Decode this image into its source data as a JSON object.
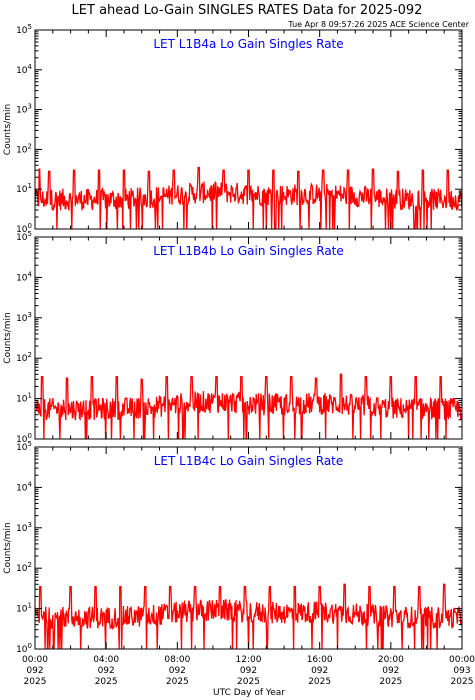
{
  "title": "LET ahead Lo-Gain SINGLES RATES Data for 2025-092",
  "timestamp": "Tue Apr  8 09:57:26 2025 ACE Science Center",
  "xlabel": "UTC Day of Year",
  "line_color": "#ff0000",
  "panel_title_color": "#0000ff",
  "chart_data": [
    {
      "type": "line",
      "title": "LET L1B4a Lo Gain Singles Rate",
      "ylabel": "Counts/min",
      "yscale": "log",
      "ylim": [
        1,
        100000
      ],
      "ytick_labels": [
        [
          "10",
          "0"
        ],
        [
          "10",
          "1"
        ],
        [
          "10",
          "2"
        ],
        [
          "10",
          "3"
        ],
        [
          "10",
          "4"
        ],
        [
          "10",
          "5"
        ]
      ],
      "xlim": [
        0,
        24
      ],
      "x_unit": "hours UTC",
      "baseline": 5.5,
      "spike_hours": [
        0.25,
        0.8,
        2.2,
        3.6,
        5.0,
        6.4,
        7.8,
        9.2,
        10.6,
        12.0,
        13.4,
        14.8,
        16.2,
        17.6,
        19.0,
        20.4,
        21.8,
        23.2
      ],
      "spike_values": [
        32,
        28,
        30,
        30,
        30,
        28,
        30,
        35,
        30,
        30,
        30,
        28,
        30,
        30,
        32,
        28,
        30,
        30
      ]
    },
    {
      "type": "line",
      "title": "LET L1B4b Lo Gain Singles Rate",
      "ylabel": "Counts/min",
      "yscale": "log",
      "ylim": [
        1,
        100000
      ],
      "ytick_labels": [
        [
          "10",
          "0"
        ],
        [
          "10",
          "1"
        ],
        [
          "10",
          "2"
        ],
        [
          "10",
          "3"
        ],
        [
          "10",
          "4"
        ],
        [
          "10",
          "5"
        ]
      ],
      "xlim": [
        0,
        24
      ],
      "x_unit": "hours UTC",
      "baseline": 5.5,
      "spike_hours": [
        0.4,
        1.8,
        3.2,
        4.6,
        6.0,
        7.4,
        8.8,
        10.2,
        11.6,
        13.0,
        14.4,
        15.8,
        17.2,
        18.6,
        20.0,
        21.4,
        22.8
      ],
      "spike_values": [
        35,
        32,
        35,
        35,
        30,
        35,
        35,
        35,
        35,
        35,
        35,
        32,
        40,
        35,
        35,
        35,
        35
      ]
    },
    {
      "type": "line",
      "title": "LET L1B4c Lo Gain Singles Rate",
      "ylabel": "Counts/min",
      "yscale": "log",
      "ylim": [
        1,
        100000
      ],
      "ytick_labels": [
        [
          "10",
          "0"
        ],
        [
          "10",
          "1"
        ],
        [
          "10",
          "2"
        ],
        [
          "10",
          "3"
        ],
        [
          "10",
          "4"
        ],
        [
          "10",
          "5"
        ]
      ],
      "xlim": [
        0,
        24
      ],
      "x_unit": "hours UTC",
      "baseline": 6.0,
      "spike_hours": [
        0.3,
        2.0,
        3.4,
        4.8,
        6.2,
        7.6,
        9.0,
        10.4,
        11.8,
        13.2,
        14.6,
        16.0,
        17.4,
        18.8,
        20.2,
        21.6,
        23.0
      ],
      "spike_values": [
        35,
        35,
        35,
        35,
        35,
        35,
        35,
        35,
        35,
        35,
        35,
        35,
        40,
        35,
        35,
        35,
        40
      ]
    }
  ],
  "x_ticks": [
    {
      "hour": 0,
      "time": "00:00",
      "doy": "092",
      "year": "2025"
    },
    {
      "hour": 4,
      "time": "04:00",
      "doy": "092",
      "year": "2025"
    },
    {
      "hour": 8,
      "time": "08:00",
      "doy": "092",
      "year": "2025"
    },
    {
      "hour": 12,
      "time": "12:00",
      "doy": "092",
      "year": "2025"
    },
    {
      "hour": 16,
      "time": "16:00",
      "doy": "092",
      "year": "2025"
    },
    {
      "hour": 20,
      "time": "20:00",
      "doy": "092",
      "year": "2025"
    },
    {
      "hour": 24,
      "time": "00:00",
      "doy": "093",
      "year": "2025"
    }
  ]
}
